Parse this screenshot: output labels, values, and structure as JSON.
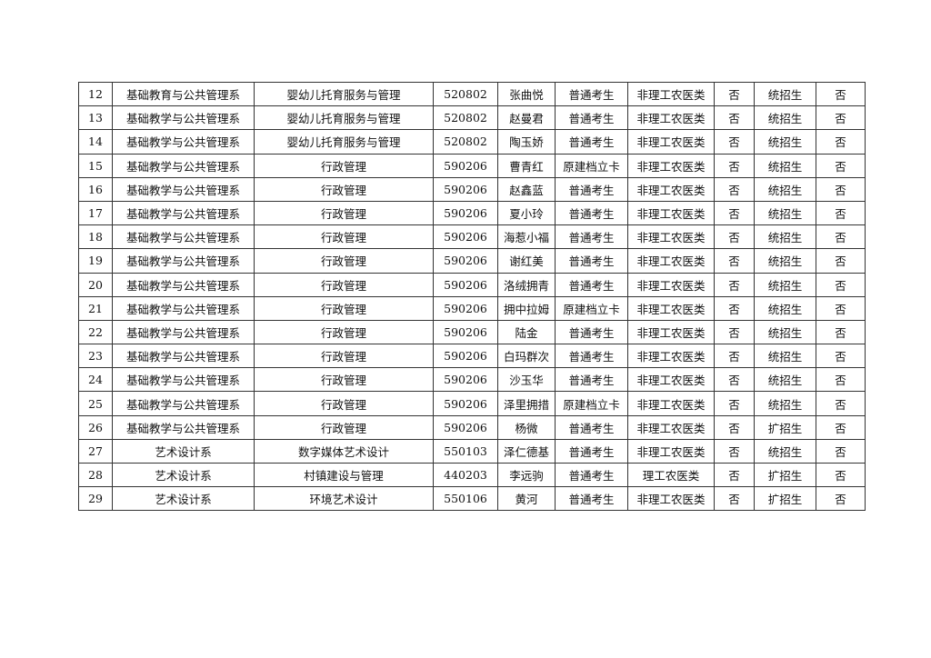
{
  "rows": [
    [
      "12",
      "基础教育与公共管理系",
      "婴幼儿托育服务与管理",
      "520802",
      "张曲悦",
      "普通考生",
      "非理工农医类",
      "否",
      "统招生",
      "否"
    ],
    [
      "13",
      "基础教学与公共管理系",
      "婴幼儿托育服务与管理",
      "520802",
      "赵曼君",
      "普通考生",
      "非理工农医类",
      "否",
      "统招生",
      "否"
    ],
    [
      "14",
      "基础教学与公共管理系",
      "婴幼儿托育服务与管理",
      "520802",
      "陶玉娇",
      "普通考生",
      "非理工农医类",
      "否",
      "统招生",
      "否"
    ],
    [
      "15",
      "基础教学与公共管理系",
      "行政管理",
      "590206",
      "曹青红",
      "原建档立卡",
      "非理工农医类",
      "否",
      "统招生",
      "否"
    ],
    [
      "16",
      "基础教学与公共管理系",
      "行政管理",
      "590206",
      "赵鑫蓝",
      "普通考生",
      "非理工农医类",
      "否",
      "统招生",
      "否"
    ],
    [
      "17",
      "基础教学与公共管理系",
      "行政管理",
      "590206",
      "夏小玲",
      "普通考生",
      "非理工农医类",
      "否",
      "统招生",
      "否"
    ],
    [
      "18",
      "基础教学与公共管理系",
      "行政管理",
      "590206",
      "海惹小福",
      "普通考生",
      "非理工农医类",
      "否",
      "统招生",
      "否"
    ],
    [
      "19",
      "基础教学与公共管理系",
      "行政管理",
      "590206",
      "谢红美",
      "普通考生",
      "非理工农医类",
      "否",
      "统招生",
      "否"
    ],
    [
      "20",
      "基础教学与公共管理系",
      "行政管理",
      "590206",
      "洛绒拥青",
      "普通考生",
      "非理工农医类",
      "否",
      "统招生",
      "否"
    ],
    [
      "21",
      "基础教学与公共管理系",
      "行政管理",
      "590206",
      "拥中拉姆",
      "原建档立卡",
      "非理工农医类",
      "否",
      "统招生",
      "否"
    ],
    [
      "22",
      "基础教学与公共管理系",
      "行政管理",
      "590206",
      "陆金",
      "普通考生",
      "非理工农医类",
      "否",
      "统招生",
      "否"
    ],
    [
      "23",
      "基础教学与公共管理系",
      "行政管理",
      "590206",
      "白玛群次",
      "普通考生",
      "非理工农医类",
      "否",
      "统招生",
      "否"
    ],
    [
      "24",
      "基础教学与公共管理系",
      "行政管理",
      "590206",
      "沙玉华",
      "普通考生",
      "非理工农医类",
      "否",
      "统招生",
      "否"
    ],
    [
      "25",
      "基础教学与公共管理系",
      "行政管理",
      "590206",
      "泽里拥措",
      "原建档立卡",
      "非理工农医类",
      "否",
      "统招生",
      "否"
    ],
    [
      "26",
      "基础教学与公共管理系",
      "行政管理",
      "590206",
      "杨微",
      "普通考生",
      "非理工农医类",
      "否",
      "扩招生",
      "否"
    ],
    [
      "27",
      "艺术设计系",
      "数字媒体艺术设计",
      "550103",
      "泽仁德基",
      "普通考生",
      "非理工农医类",
      "否",
      "统招生",
      "否"
    ],
    [
      "28",
      "艺术设计系",
      "村镇建设与管理",
      "440203",
      "李远驹",
      "普通考生",
      "理工农医类",
      "否",
      "扩招生",
      "否"
    ],
    [
      "29",
      "艺术设计系",
      "环境艺术设计",
      "550106",
      "黄河",
      "普通考生",
      "非理工农医类",
      "否",
      "扩招生",
      "否"
    ]
  ]
}
